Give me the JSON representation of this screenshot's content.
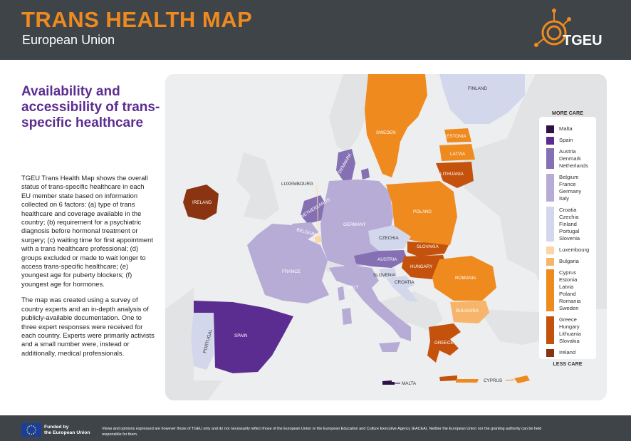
{
  "header": {
    "title": "TRANS HEALTH MAP",
    "subtitle": "European Union",
    "logo_text": "TGEU"
  },
  "intro": {
    "heading": "Availability and accessibility of trans-specific healthcare",
    "paragraph1": "TGEU Trans Health Map shows the overall status of trans-specific healthcare in each EU member state based on information collected on 6 factors: (a) type of trans healthcare and coverage available in the country; (b) requirement for a psychiatric diagnosis before hormonal treatment or surgery; (c) waiting time for first appointment with a trans healthcare professional; (d) groups excluded or made to wait longer to access trans-specific healthcare; (e) youngest age for puberty blockers; (f) youngest age for hormones.",
    "paragraph2": "The map was created using a survey of country experts and an in-depth analysis of publicly-available documentation. One to three expert responses were received for each country. Experts were primarily activists and a small number were, instead or additionally, medical professionals."
  },
  "legend": {
    "top_label": "MORE CARE",
    "bottom_label": "LESS CARE",
    "groups": [
      {
        "color": "#2e1245",
        "text": "Malta"
      },
      {
        "color": "#5b2d91",
        "text": "Spain"
      },
      {
        "color": "#8470b3",
        "text": "Austria\nDenmark\nNetherlands"
      },
      {
        "color": "#b7acd6",
        "text": "Belgium\nFrance\nGermany\nItaly"
      },
      {
        "color": "#d3d7ec",
        "text": "Croatia\nCzechia\nFinland\nPortugal\nSlovenia"
      },
      {
        "color": "#fbd6a4",
        "text": "Luxembourg"
      },
      {
        "color": "#f6b56a",
        "text": "Bulgaria"
      },
      {
        "color": "#ef8a1f",
        "text": "Cyprus\nEstonia\nLatvia\nPoland\nRomania\nSweden"
      },
      {
        "color": "#c4520c",
        "text": "Greece\nHungary\nLithuania\nSlovakia"
      },
      {
        "color": "#8b3412",
        "text": "Ireland"
      }
    ]
  },
  "map_labels": {
    "finland": "FINLAND",
    "sweden": "SWEDEN",
    "estonia": "ESTONIA",
    "latvia": "LATVIA",
    "lithuania": "LITHUANIA",
    "denmark": "DENMARK",
    "ireland": "IRELAND",
    "luxembourg": "LUXEMBOURG",
    "netherlands": "NETHERLANDS",
    "belgium": "BELGIUM",
    "germany": "GERMANY",
    "poland": "POLAND",
    "czechia": "CZECHIA",
    "slovakia": "SLOVAKIA",
    "austria": "AUSTRIA",
    "hungary": "HUNGARY",
    "france": "FRANCE",
    "slovenia": "SLOVENIA",
    "croatia": "CROATIA",
    "romania": "ROMANIA",
    "italy": "ITALY",
    "bulgaria": "BULGARIA",
    "portugal": "PORTUGAL",
    "spain": "SPAIN",
    "greece": "GREECE",
    "malta": "MALTA",
    "cyprus": "CYPRUS"
  },
  "footer": {
    "funded_line1": "Funded by",
    "funded_line2": "the European Union",
    "disclaimer": "Views and opinions expressed are however those of TGEU only and do not necessarily reflect those of the European Union or the European Education and Culture Executive Agency (EACEA). Neither the European Union nor the granting authority can be held responsible for them."
  },
  "colors": {
    "header_bg": "#3f4449",
    "title_orange": "#ef8a1f",
    "heading_purple": "#5b2d91",
    "map_bg": "#edeef0",
    "non_eu_land": "#e2e3e5"
  }
}
